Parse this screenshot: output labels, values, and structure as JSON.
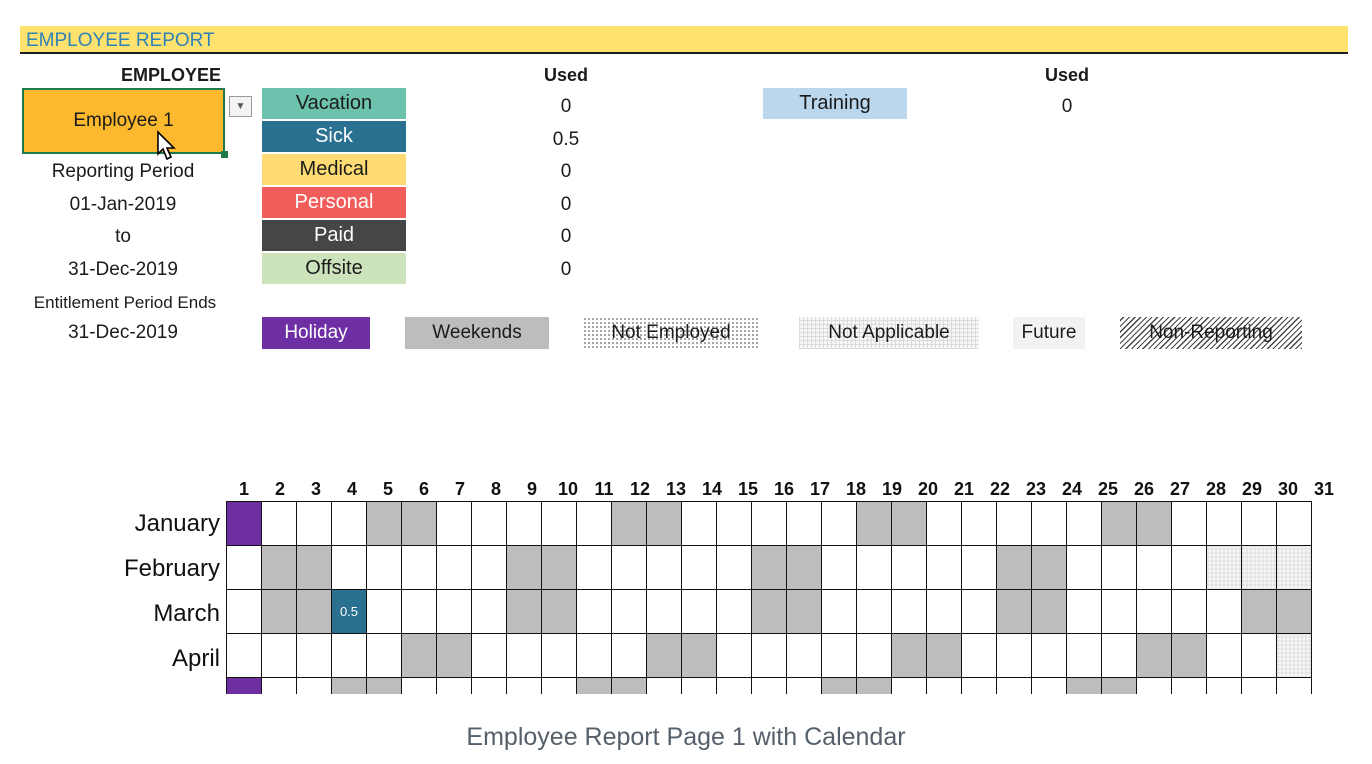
{
  "report_title": "EMPLOYEE REPORT",
  "employee_header": "EMPLOYEE",
  "employee_name": "Employee 1",
  "reporting_period_label": "Reporting Period",
  "period_start": "01-Jan-2019",
  "period_to": "to",
  "period_end": "31-Dec-2019",
  "entitlement_label": "Entitlement Period Ends",
  "entitlement_end": "31-Dec-2019",
  "used_header": "Used",
  "categories": [
    {
      "label": "Vacation",
      "used": "0",
      "bg": "#6cc2ac",
      "fg": "#1b1b1b"
    },
    {
      "label": "Sick",
      "used": "0.5",
      "bg": "#2a7091",
      "fg": "#ffffff"
    },
    {
      "label": "Medical",
      "used": "0",
      "bg": "#fedc73",
      "fg": "#1b1b1b"
    },
    {
      "label": "Personal",
      "used": "0",
      "bg": "#f05d5b",
      "fg": "#ffffff"
    },
    {
      "label": "Paid",
      "used": "0",
      "bg": "#464646",
      "fg": "#ffffff"
    },
    {
      "label": "Offsite",
      "used": "0",
      "bg": "#cce3bc",
      "fg": "#1b1b1b"
    }
  ],
  "training": {
    "label": "Training",
    "used": "0",
    "bg": "#bad7ee"
  },
  "legend": [
    {
      "label": "Holiday",
      "style": "holiday"
    },
    {
      "label": "Weekends",
      "style": "weekend"
    },
    {
      "label": "Not Employed",
      "style": "not-employed"
    },
    {
      "label": "Not Applicable",
      "style": "not-applicable"
    },
    {
      "label": "Future",
      "style": "future"
    },
    {
      "label": "Non-Reporting",
      "style": "non-reporting"
    }
  ],
  "colors": {
    "holiday": "#6e2fa4",
    "weekend": "#bdbdbd",
    "header_band": "#ffe26e",
    "title_text": "#2f82b8",
    "sick": "#2a7091"
  },
  "calendar": {
    "days": [
      "1",
      "2",
      "3",
      "4",
      "5",
      "6",
      "7",
      "8",
      "9",
      "10",
      "11",
      "12",
      "13",
      "14",
      "15",
      "16",
      "17",
      "18",
      "19",
      "20",
      "21",
      "22",
      "23",
      "24",
      "25",
      "26",
      "27",
      "28",
      "29",
      "30",
      "31"
    ],
    "months": [
      {
        "name": "January",
        "start_weekday": 2,
        "length": 31,
        "holidays": [
          1
        ],
        "entries": {}
      },
      {
        "name": "February",
        "start_weekday": 5,
        "length": 28,
        "holidays": [],
        "entries": {}
      },
      {
        "name": "March",
        "start_weekday": 5,
        "length": 31,
        "holidays": [],
        "entries": {
          "4": "0.5"
        }
      },
      {
        "name": "April",
        "start_weekday": 1,
        "length": 30,
        "holidays": [],
        "entries": {}
      },
      {
        "name": "",
        "start_weekday": 3,
        "length": 31,
        "holidays": [
          1
        ],
        "entries": {}
      }
    ]
  },
  "caption": "Employee Report Page 1 with Calendar"
}
